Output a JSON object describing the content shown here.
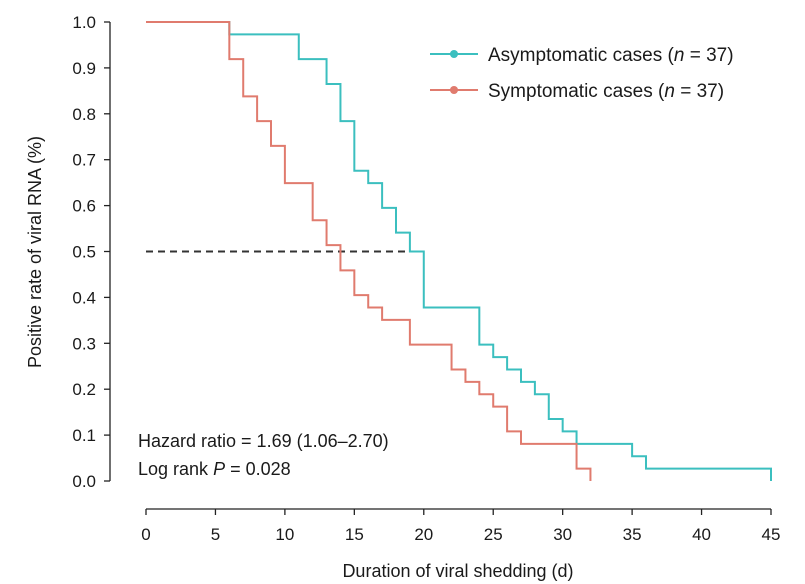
{
  "chart_data": {
    "type": "line",
    "step": true,
    "xlabel": "Duration of viral shedding (d)",
    "ylabel": "Positive rate of viral RNA (%)",
    "xlim": [
      0,
      45
    ],
    "ylim": [
      0,
      1.0
    ],
    "xticks": [
      "0",
      "5",
      "10",
      "15",
      "20",
      "25",
      "30",
      "35",
      "40",
      "45"
    ],
    "yticks": [
      "0.0",
      "0.1",
      "0.2",
      "0.3",
      "0.4",
      "0.5",
      "0.6",
      "0.7",
      "0.8",
      "0.9",
      "1.0"
    ],
    "grid": false,
    "legend_position": "top-right",
    "reference_line": {
      "y": 0.5,
      "x_end": 19,
      "style": "dashed"
    },
    "series": [
      {
        "name": "Asymptomatic cases",
        "n_label": "n",
        "n_value": "= 37)",
        "color": "#3bbfbf",
        "x": [
          0,
          6,
          11,
          13,
          14,
          15,
          16,
          17,
          18,
          19,
          20,
          24,
          25,
          26,
          27,
          28,
          29,
          30,
          31,
          35,
          36,
          45,
          45
        ],
        "y": [
          1.0,
          0.973,
          0.919,
          0.865,
          0.784,
          0.676,
          0.649,
          0.595,
          0.541,
          0.5,
          0.378,
          0.297,
          0.27,
          0.243,
          0.216,
          0.189,
          0.135,
          0.108,
          0.081,
          0.054,
          0.027,
          0.027,
          0.0
        ]
      },
      {
        "name": "Symptomatic cases",
        "n_label": "n",
        "n_value": "= 37)",
        "color": "#e07b6e",
        "x": [
          0,
          6,
          7,
          8,
          9,
          10,
          12,
          13,
          14,
          15,
          16,
          17,
          19,
          22,
          23,
          24,
          25,
          26,
          27,
          31,
          32,
          32
        ],
        "y": [
          1.0,
          0.919,
          0.838,
          0.784,
          0.73,
          0.649,
          0.568,
          0.514,
          0.459,
          0.405,
          0.378,
          0.351,
          0.297,
          0.243,
          0.216,
          0.189,
          0.162,
          0.108,
          0.081,
          0.027,
          0.0,
          0.0
        ]
      }
    ],
    "annotations": [
      "Hazard ratio = 1.69 (1.06–2.70)",
      "Log rank",
      "P",
      "= 0.028"
    ]
  }
}
